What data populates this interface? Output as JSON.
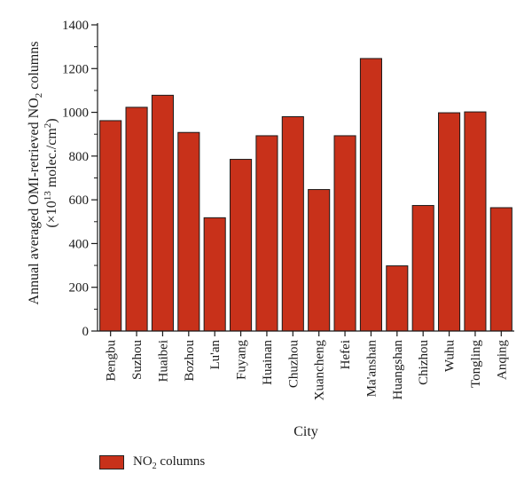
{
  "chart_data": {
    "type": "bar",
    "categories": [
      "Bengbu",
      "Suzhou",
      "Huaibei",
      "Bozhou",
      "Lu'an",
      "Fuyang",
      "Huainan",
      "Chuzhou",
      "Xuancheng",
      "Hefei",
      "Ma'anshan",
      "Huangshan",
      "Chizhou",
      "Wuhu",
      "Tongling",
      "Anqing"
    ],
    "series": [
      {
        "name": "NO2 columns",
        "values": [
          962,
          1023,
          1078,
          908,
          518,
          785,
          893,
          980,
          647,
          893,
          1246,
          298,
          574,
          998,
          1002,
          564
        ]
      }
    ],
    "xlabel": "City",
    "ylabel": {
      "line1": "Annual averaged OMI-retrieved NO2 columns",
      "line2_prefix": "(×10",
      "line2_exp": "13",
      "line2_mid": " molec./cm",
      "line2_exp2": "2",
      "line2_suffix": ")"
    },
    "ylim": [
      0,
      1400
    ],
    "yticks": [
      0,
      200,
      400,
      600,
      800,
      1000,
      1200,
      1400
    ],
    "bar_color": "#c8311a",
    "legend": {
      "label_main": "NO",
      "label_sub": "2",
      "label_rest": " columns",
      "position": "bottom-left"
    },
    "grid": false
  }
}
